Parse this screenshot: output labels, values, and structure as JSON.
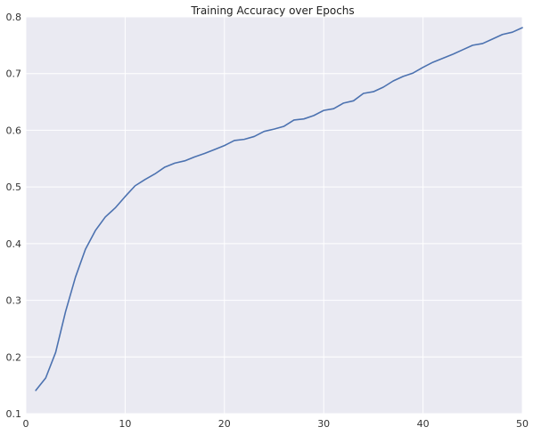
{
  "chart_data": {
    "type": "line",
    "title": "Training Accuracy over Epochs",
    "xlabel": "",
    "ylabel": "",
    "xlim": [
      0,
      50
    ],
    "ylim": [
      0.1,
      0.8
    ],
    "grid": true,
    "x_ticks": [
      0,
      10,
      20,
      30,
      40,
      50
    ],
    "x_tick_labels": [
      "0",
      "10",
      "20",
      "30",
      "40",
      "50"
    ],
    "y_ticks": [
      0.1,
      0.2,
      0.3,
      0.4,
      0.5,
      0.6,
      0.7,
      0.8
    ],
    "y_tick_labels": [
      "0.1",
      "0.2",
      "0.3",
      "0.4",
      "0.5",
      "0.6",
      "0.7",
      "0.8"
    ],
    "colors": {
      "background": "#eaeaf2",
      "grid": "#ffffff",
      "line": "#4c72b0"
    },
    "series": [
      {
        "x": [
          1,
          2,
          3,
          4,
          5,
          6,
          7,
          8,
          9,
          10,
          11,
          12,
          13,
          14,
          15,
          16,
          17,
          18,
          19,
          20,
          21,
          22,
          23,
          24,
          25,
          26,
          27,
          28,
          29,
          30,
          31,
          32,
          33,
          34,
          35,
          36,
          37,
          38,
          39,
          40,
          41,
          42,
          43,
          44,
          45,
          46,
          47,
          48,
          49,
          50
        ],
        "values": [
          0.141,
          0.163,
          0.208,
          0.28,
          0.341,
          0.39,
          0.423,
          0.447,
          0.463,
          0.483,
          0.502,
          0.513,
          0.523,
          0.535,
          0.542,
          0.546,
          0.553,
          0.559,
          0.566,
          0.573,
          0.582,
          0.584,
          0.589,
          0.598,
          0.602,
          0.607,
          0.618,
          0.62,
          0.626,
          0.635,
          0.638,
          0.648,
          0.652,
          0.665,
          0.668,
          0.676,
          0.687,
          0.695,
          0.701,
          0.711,
          0.72,
          0.727,
          0.734,
          0.742,
          0.75,
          0.753,
          0.761,
          0.769,
          0.773,
          0.781
        ]
      }
    ]
  }
}
